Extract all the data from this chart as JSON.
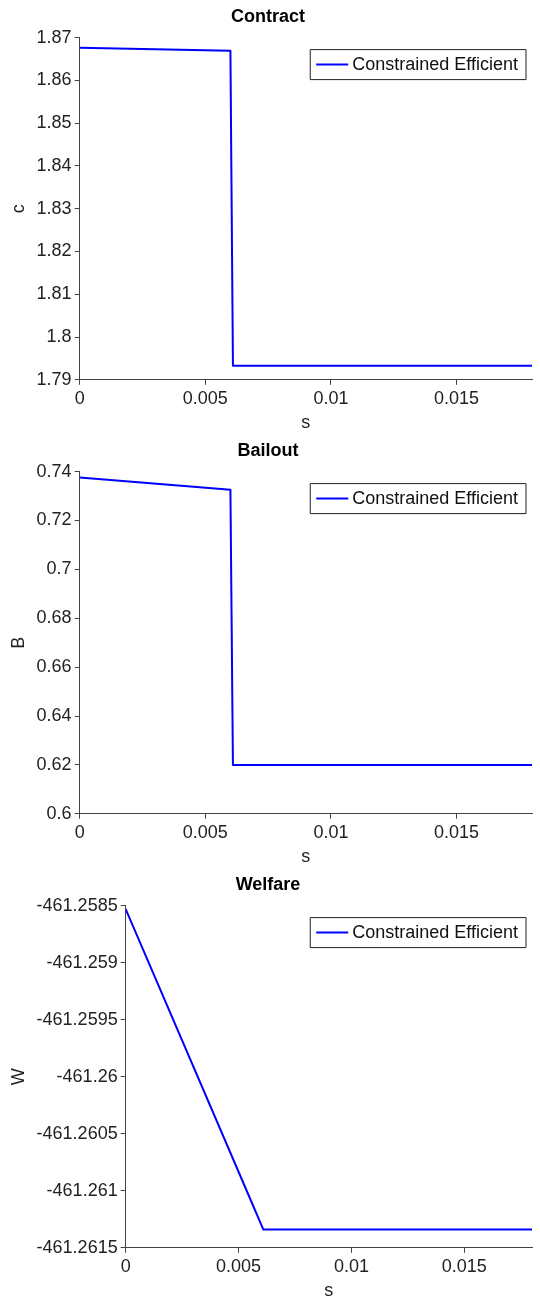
{
  "chart_data": [
    {
      "type": "line",
      "title": "Contract",
      "xlabel": "s",
      "ylabel": "c",
      "xlim": [
        0,
        0.018
      ],
      "xticks": [
        0,
        0.005,
        0.01,
        0.015
      ],
      "ylim": [
        1.79,
        1.87
      ],
      "yticks": [
        1.79,
        1.8,
        1.81,
        1.82,
        1.83,
        1.84,
        1.85,
        1.86,
        1.87
      ],
      "grid": false,
      "legend": "top right",
      "marker": "none",
      "series": [
        {
          "name": "Constrained Efficient",
          "color": "#0000ff",
          "line_style": "solid",
          "x": [
            0,
            0.006,
            0.0061,
            0.018
          ],
          "values": [
            1.8676,
            1.8669,
            1.7933,
            1.7933
          ]
        },
        {
          "color": "#0000ff",
          "line_style": "dotted",
          "x": [
            0.006,
            0.0061
          ],
          "values": [
            1.8669,
            1.7933
          ]
        }
      ]
    },
    {
      "type": "line",
      "title": "Bailout",
      "xlabel": "s",
      "ylabel": "B",
      "xlim": [
        0,
        0.018
      ],
      "xticks": [
        0,
        0.005,
        0.01,
        0.015
      ],
      "ylim": [
        0.6,
        0.74
      ],
      "yticks": [
        0.6,
        0.62,
        0.64,
        0.66,
        0.68,
        0.7,
        0.72,
        0.74
      ],
      "grid": false,
      "legend": "top right",
      "marker": "none",
      "series": [
        {
          "name": "Constrained Efficient",
          "color": "#0000ff",
          "line_style": "solid",
          "x": [
            0,
            0.006,
            0.0061,
            0.018
          ],
          "values": [
            0.7376,
            0.7326,
            0.62,
            0.62
          ]
        },
        {
          "color": "#0000ff",
          "line_style": "dotted",
          "x": [
            0.006,
            0.0061
          ],
          "values": [
            0.7326,
            0.62
          ]
        }
      ]
    },
    {
      "type": "line",
      "title": "Welfare",
      "xlabel": "s",
      "ylabel": "W",
      "xlim": [
        0,
        0.018
      ],
      "xticks": [
        0,
        0.005,
        0.01,
        0.015
      ],
      "ylim": [
        -461.2615,
        -461.2585
      ],
      "yticks": [
        -461.2615,
        -461.261,
        -461.2605,
        -461.26,
        -461.2595,
        -461.259,
        -461.2585
      ],
      "grid": false,
      "legend": "top right",
      "marker": "none",
      "series": [
        {
          "name": "Constrained Efficient",
          "color": "#0000ff",
          "line_style": "solid",
          "x": [
            0,
            0.0061,
            0.018
          ],
          "values": [
            -461.25853,
            -461.26134,
            -461.26134
          ]
        }
      ]
    }
  ]
}
